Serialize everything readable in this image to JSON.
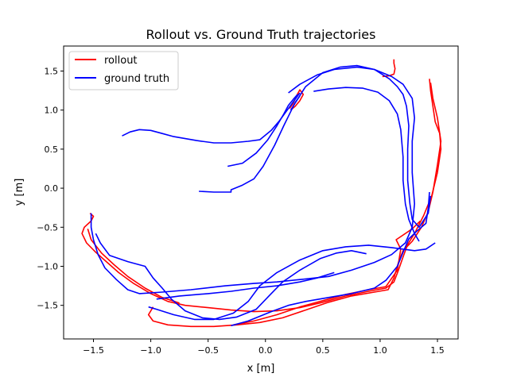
{
  "chart_data": {
    "type": "line",
    "title": "Rollout vs. Ground Truth trajectories",
    "xlabel": "x [m]",
    "ylabel": "y [m]",
    "xlim": [
      -1.76,
      1.68
    ],
    "ylim": [
      -1.93,
      1.82
    ],
    "xticks": [
      -1.5,
      -1.0,
      -0.5,
      0.0,
      0.5,
      1.0,
      1.5
    ],
    "xtick_labels": [
      "−1.5",
      "−1.0",
      "−0.5",
      "0.0",
      "0.5",
      "1.0",
      "1.5"
    ],
    "yticks": [
      -1.5,
      -1.0,
      -0.5,
      0.0,
      0.5,
      1.0,
      1.5
    ],
    "ytick_labels": [
      "−1.5",
      "−1.0",
      "−0.5",
      "0.0",
      "0.5",
      "1.0",
      "1.5"
    ],
    "grid": false,
    "legend_position": "upper-left",
    "series": [
      {
        "name": "rollout",
        "color": "#ff0000",
        "segments": [
          [
            [
              -1.53,
              -0.32
            ],
            [
              -1.5,
              -0.36
            ],
            [
              -1.52,
              -0.42
            ],
            [
              -1.58,
              -0.5
            ],
            [
              -1.6,
              -0.58
            ],
            [
              -1.56,
              -0.7
            ],
            [
              -1.48,
              -0.82
            ],
            [
              -1.38,
              -0.95
            ],
            [
              -1.28,
              -1.08
            ],
            [
              -1.15,
              -1.22
            ],
            [
              -1.0,
              -1.35
            ],
            [
              -0.85,
              -1.45
            ],
            [
              -0.7,
              -1.5
            ],
            [
              -0.5,
              -1.53
            ],
            [
              -0.3,
              -1.56
            ],
            [
              -0.1,
              -1.58
            ],
            [
              0.1,
              -1.57
            ],
            [
              0.3,
              -1.53
            ],
            [
              0.5,
              -1.46
            ],
            [
              0.7,
              -1.38
            ],
            [
              0.9,
              -1.32
            ],
            [
              1.05,
              -1.28
            ],
            [
              1.12,
              -1.2
            ],
            [
              1.16,
              -1.05
            ],
            [
              1.2,
              -0.88
            ],
            [
              1.24,
              -0.72
            ],
            [
              1.3,
              -0.58
            ],
            [
              1.38,
              -0.35
            ],
            [
              1.45,
              -0.1
            ],
            [
              1.5,
              0.2
            ],
            [
              1.53,
              0.5
            ],
            [
              1.52,
              0.7
            ],
            [
              1.48,
              0.85
            ],
            [
              1.46,
              1.05
            ],
            [
              1.44,
              1.25
            ],
            [
              1.43,
              1.4
            ]
          ],
          [
            [
              -0.98,
              -1.52
            ],
            [
              -1.02,
              -1.62
            ],
            [
              -0.98,
              -1.7
            ],
            [
              -0.85,
              -1.75
            ],
            [
              -0.65,
              -1.77
            ],
            [
              -0.45,
              -1.77
            ],
            [
              -0.25,
              -1.75
            ],
            [
              -0.05,
              -1.72
            ],
            [
              0.15,
              -1.66
            ],
            [
              0.35,
              -1.56
            ],
            [
              0.55,
              -1.46
            ],
            [
              0.75,
              -1.38
            ],
            [
              0.95,
              -1.33
            ],
            [
              1.07,
              -1.3
            ],
            [
              1.12,
              -1.15
            ],
            [
              1.16,
              -0.95
            ],
            [
              1.2,
              -0.8
            ],
            [
              1.28,
              -0.68
            ],
            [
              1.36,
              -0.5
            ],
            [
              1.42,
              -0.3
            ],
            [
              1.46,
              -0.05
            ],
            [
              1.5,
              0.3
            ],
            [
              1.53,
              0.6
            ],
            [
              1.5,
              0.9
            ],
            [
              1.46,
              1.15
            ],
            [
              1.44,
              1.35
            ]
          ],
          [
            [
              -1.55,
              -0.52
            ],
            [
              -1.52,
              -0.66
            ],
            [
              -1.43,
              -0.83
            ],
            [
              -1.32,
              -0.98
            ],
            [
              -1.2,
              -1.13
            ],
            [
              -1.05,
              -1.28
            ],
            [
              -0.9,
              -1.4
            ],
            [
              -0.75,
              -1.47
            ]
          ],
          [
            [
              -0.28,
              -1.75
            ],
            [
              -0.1,
              -1.7
            ],
            [
              0.1,
              -1.62
            ],
            [
              0.3,
              -1.52
            ],
            [
              0.5,
              -1.44
            ],
            [
              0.7,
              -1.36
            ],
            [
              0.9,
              -1.3
            ],
            [
              1.05,
              -1.26
            ],
            [
              1.15,
              -1.05
            ],
            [
              1.18,
              -0.78
            ],
            [
              1.14,
              -0.66
            ],
            [
              1.2,
              -0.6
            ],
            [
              1.28,
              -0.52
            ],
            [
              1.35,
              -0.42
            ]
          ],
          [
            [
              0.22,
              1.0
            ],
            [
              0.26,
              1.05
            ],
            [
              0.3,
              1.12
            ],
            [
              0.33,
              1.2
            ],
            [
              0.3,
              1.26
            ],
            [
              0.27,
              1.18
            ],
            [
              0.24,
              1.08
            ],
            [
              0.21,
              1.02
            ]
          ],
          [
            [
              1.02,
              1.43
            ],
            [
              1.08,
              1.44
            ],
            [
              1.12,
              1.46
            ],
            [
              1.13,
              1.53
            ],
            [
              1.12,
              1.6
            ],
            [
              1.12,
              1.65
            ]
          ]
        ]
      },
      {
        "name": "ground truth",
        "color": "#0000ff",
        "segments": [
          [
            [
              -1.25,
              0.67
            ],
            [
              -1.18,
              0.72
            ],
            [
              -1.1,
              0.75
            ],
            [
              -1.0,
              0.74
            ],
            [
              -0.9,
              0.7
            ],
            [
              -0.8,
              0.66
            ],
            [
              -0.6,
              0.61
            ],
            [
              -0.45,
              0.58
            ],
            [
              -0.3,
              0.58
            ],
            [
              -0.15,
              0.6
            ],
            [
              -0.05,
              0.62
            ],
            [
              0.05,
              0.74
            ],
            [
              0.12,
              0.86
            ],
            [
              0.18,
              0.98
            ],
            [
              0.25,
              1.12
            ],
            [
              0.3,
              1.22
            ]
          ],
          [
            [
              -0.33,
              0.28
            ],
            [
              -0.2,
              0.32
            ],
            [
              -0.08,
              0.45
            ],
            [
              0.02,
              0.62
            ],
            [
              0.1,
              0.8
            ],
            [
              0.16,
              0.95
            ],
            [
              0.2,
              1.06
            ],
            [
              0.25,
              1.15
            ],
            [
              0.28,
              1.2
            ]
          ],
          [
            [
              -0.58,
              -0.04
            ],
            [
              -0.45,
              -0.05
            ],
            [
              -0.3,
              -0.05
            ],
            [
              -0.3,
              -0.02
            ],
            [
              -0.2,
              0.04
            ],
            [
              -0.1,
              0.12
            ],
            [
              -0.02,
              0.28
            ],
            [
              0.08,
              0.55
            ],
            [
              0.16,
              0.8
            ],
            [
              0.22,
              0.98
            ],
            [
              0.26,
              1.1
            ],
            [
              0.3,
              1.18
            ]
          ],
          [
            [
              0.2,
              1.22
            ],
            [
              0.3,
              1.33
            ],
            [
              0.45,
              1.45
            ],
            [
              0.6,
              1.52
            ],
            [
              0.8,
              1.55
            ],
            [
              0.95,
              1.52
            ],
            [
              1.1,
              1.43
            ],
            [
              1.2,
              1.33
            ],
            [
              1.28,
              1.15
            ],
            [
              1.3,
              0.9
            ],
            [
              1.28,
              0.6
            ],
            [
              1.28,
              0.2
            ],
            [
              1.3,
              -0.2
            ],
            [
              1.28,
              -0.5
            ],
            [
              1.22,
              -0.7
            ],
            [
              1.1,
              -0.85
            ],
            [
              0.95,
              -0.95
            ],
            [
              0.75,
              -1.05
            ],
            [
              0.55,
              -1.13
            ],
            [
              0.3,
              -1.17
            ],
            [
              0.1,
              -1.2
            ],
            [
              -0.1,
              -1.22
            ],
            [
              -0.35,
              -1.25
            ],
            [
              -0.65,
              -1.3
            ],
            [
              -0.9,
              -1.33
            ],
            [
              -1.1,
              -1.35
            ],
            [
              -1.2,
              -1.3
            ],
            [
              -1.3,
              -1.17
            ],
            [
              -1.4,
              -1.02
            ],
            [
              -1.46,
              -0.85
            ],
            [
              -1.5,
              -0.66
            ],
            [
              -1.52,
              -0.5
            ],
            [
              -1.52,
              -0.32
            ]
          ],
          [
            [
              0.42,
              1.24
            ],
            [
              0.55,
              1.27
            ],
            [
              0.7,
              1.29
            ],
            [
              0.85,
              1.28
            ],
            [
              0.98,
              1.23
            ],
            [
              1.08,
              1.12
            ],
            [
              1.15,
              0.95
            ],
            [
              1.18,
              0.75
            ],
            [
              1.2,
              0.4
            ],
            [
              1.2,
              0.1
            ],
            [
              1.22,
              -0.2
            ],
            [
              1.25,
              -0.4
            ],
            [
              1.3,
              -0.58
            ],
            [
              1.34,
              -0.68
            ]
          ],
          [
            [
              0.22,
              1.0
            ],
            [
              0.35,
              1.3
            ],
            [
              0.5,
              1.48
            ],
            [
              0.65,
              1.55
            ],
            [
              0.8,
              1.57
            ],
            [
              0.95,
              1.52
            ],
            [
              1.08,
              1.4
            ],
            [
              1.15,
              1.3
            ],
            [
              1.2,
              1.2
            ],
            [
              1.23,
              1.05
            ],
            [
              1.25,
              0.8
            ],
            [
              1.24,
              0.5
            ],
            [
              1.24,
              0.1
            ],
            [
              1.26,
              -0.2
            ],
            [
              1.28,
              -0.4
            ],
            [
              1.34,
              -0.5
            ],
            [
              1.42,
              -0.32
            ],
            [
              1.44,
              -0.1
            ]
          ],
          [
            [
              -1.48,
              -0.58
            ],
            [
              -1.44,
              -0.7
            ],
            [
              -1.36,
              -0.86
            ],
            [
              -1.2,
              -0.94
            ],
            [
              -1.05,
              -1.0
            ],
            [
              -0.98,
              -1.15
            ],
            [
              -0.9,
              -1.28
            ],
            [
              -0.82,
              -1.42
            ],
            [
              -0.7,
              -1.57
            ],
            [
              -0.55,
              -1.66
            ],
            [
              -0.4,
              -1.68
            ],
            [
              -0.25,
              -1.65
            ],
            [
              -0.08,
              -1.55
            ],
            [
              0.05,
              -1.35
            ],
            [
              0.15,
              -1.2
            ],
            [
              0.3,
              -1.05
            ],
            [
              0.48,
              -0.9
            ],
            [
              0.62,
              -0.83
            ],
            [
              0.75,
              -0.8
            ],
            [
              0.88,
              -0.84
            ]
          ],
          [
            [
              -1.02,
              -1.52
            ],
            [
              -0.95,
              -1.55
            ],
            [
              -0.8,
              -1.62
            ],
            [
              -0.62,
              -1.68
            ],
            [
              -0.45,
              -1.68
            ],
            [
              -0.28,
              -1.6
            ],
            [
              -0.15,
              -1.45
            ],
            [
              -0.05,
              -1.25
            ],
            [
              0.1,
              -1.08
            ],
            [
              0.3,
              -0.92
            ],
            [
              0.5,
              -0.8
            ],
            [
              0.7,
              -0.75
            ],
            [
              0.9,
              -0.73
            ],
            [
              1.1,
              -0.76
            ],
            [
              1.3,
              -0.8
            ],
            [
              1.4,
              -0.78
            ],
            [
              1.48,
              -0.7
            ]
          ],
          [
            [
              -0.3,
              -1.76
            ],
            [
              -0.15,
              -1.7
            ],
            [
              0.05,
              -1.58
            ],
            [
              0.2,
              -1.5
            ],
            [
              0.35,
              -1.45
            ],
            [
              0.55,
              -1.4
            ],
            [
              0.75,
              -1.35
            ],
            [
              0.95,
              -1.28
            ],
            [
              1.05,
              -1.18
            ],
            [
              1.15,
              -1.0
            ],
            [
              1.2,
              -0.82
            ],
            [
              1.25,
              -0.65
            ],
            [
              1.32,
              -0.55
            ],
            [
              1.4,
              -0.45
            ],
            [
              1.42,
              -0.25
            ],
            [
              1.43,
              -0.05
            ]
          ],
          [
            [
              -0.95,
              -1.42
            ],
            [
              -0.75,
              -1.38
            ],
            [
              -0.5,
              -1.35
            ],
            [
              -0.3,
              -1.32
            ],
            [
              -0.1,
              -1.28
            ],
            [
              0.1,
              -1.25
            ],
            [
              0.3,
              -1.2
            ],
            [
              0.45,
              -1.15
            ],
            [
              0.6,
              -1.08
            ]
          ]
        ]
      }
    ]
  }
}
